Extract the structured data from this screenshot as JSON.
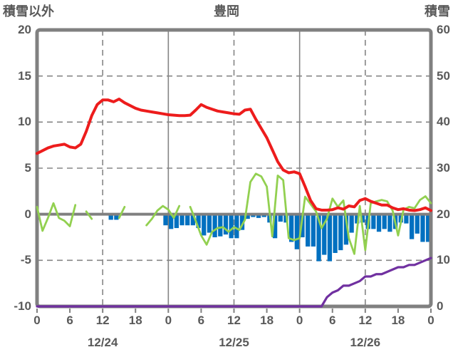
{
  "header": {
    "left_axis_title": "積雪以外",
    "chart_title": "豊岡",
    "right_axis_title": "積雪"
  },
  "colors": {
    "axis_gray": "#808080",
    "grid_gray": "#858585",
    "text_gray": "#595959",
    "temperature_red": "#ed1c1c",
    "green_series": "#92d050",
    "precip_blue": "#0070c0",
    "snow_purple": "#7030a0",
    "background": "#ffffff"
  },
  "chart_data": {
    "type": "line+bar combo",
    "title": "豊岡",
    "x_unit": "hour",
    "x_range": [
      0,
      72
    ],
    "grid": {
      "horizontal_dashed_left_values": [
        15,
        10,
        5,
        -5
      ],
      "zero_line_left_value": 0,
      "vertical_dashed_hours": [
        12,
        36,
        60
      ],
      "vertical_solid_hours": [
        24,
        48
      ],
      "bottom_tick_step_hours": 6
    },
    "left_axis": {
      "title": "積雪以外",
      "range": [
        -10,
        20
      ],
      "tick_labels": [
        "20",
        "15",
        "10",
        "5",
        "0",
        "-5",
        "-10"
      ],
      "tick_values": [
        20,
        15,
        10,
        5,
        0,
        -5,
        -10
      ]
    },
    "right_axis": {
      "title": "積雪",
      "range": [
        0,
        60
      ],
      "tick_labels": [
        "60",
        "50",
        "40",
        "30",
        "20",
        "10",
        "0"
      ],
      "tick_values": [
        60,
        50,
        40,
        30,
        20,
        10,
        0
      ]
    },
    "x_axis": {
      "hour_tick_hours": [
        0,
        6,
        12,
        18,
        24,
        30,
        36,
        42,
        48,
        54,
        60,
        66,
        72
      ],
      "hour_tick_labels": [
        "0",
        "6",
        "12",
        "18",
        "0",
        "6",
        "12",
        "18",
        "0",
        "6",
        "12",
        "18",
        "0"
      ],
      "date_labels": [
        "12/24",
        "12/25",
        "12/26"
      ],
      "date_anchor_hours": [
        12,
        36,
        60
      ]
    },
    "series": [
      {
        "name": "temperature-red-line",
        "type": "line",
        "axis": "left",
        "color": "#ed1c1c",
        "width": 4,
        "values": [
          6.6,
          6.9,
          7.2,
          7.4,
          7.5,
          7.6,
          7.3,
          7.2,
          7.6,
          9.0,
          10.7,
          11.9,
          12.4,
          12.4,
          12.2,
          12.5,
          12.1,
          11.8,
          11.5,
          11.3,
          11.2,
          11.1,
          11.0,
          10.9,
          10.8,
          10.75,
          10.7,
          10.7,
          10.75,
          11.3,
          11.9,
          11.6,
          11.4,
          11.2,
          11.1,
          11.0,
          10.9,
          10.85,
          11.3,
          11.4,
          10.3,
          9.3,
          8.3,
          7.0,
          5.7,
          4.8,
          4.5,
          4.6,
          4.4,
          3.0,
          1.5,
          0.6,
          0.45,
          0.45,
          0.5,
          0.7,
          0.55,
          0.9,
          0.8,
          1.5,
          1.7,
          1.4,
          1.2,
          1.0,
          1.0,
          0.7,
          0.5,
          0.6,
          0.45,
          0.4,
          0.5,
          0.7,
          0.4
        ]
      },
      {
        "name": "green-line",
        "type": "line",
        "axis": "left",
        "color": "#92d050",
        "width": 2.8,
        "values": [
          0.8,
          -1.8,
          -0.4,
          1.2,
          -0.4,
          -0.7,
          -1.3,
          1.0,
          null,
          0.3,
          -0.5,
          null,
          null,
          null,
          null,
          -0.4,
          0.8,
          null,
          null,
          null,
          -1.2,
          -0.5,
          0.4,
          0.9,
          0.5,
          -0.4,
          0.9,
          null,
          0.8,
          -0.7,
          -2.3,
          -3.3,
          -1.9,
          -1.5,
          -1.4,
          -1.9,
          -1.4,
          -1.7,
          -0.6,
          3.5,
          4.4,
          4.1,
          3.0,
          -2.4,
          4.2,
          3.7,
          -2.6,
          -2.8,
          -2.6,
          1.9,
          1.1,
          0.3,
          -1.5,
          -0.5,
          1.7,
          0.8,
          1.5,
          -2.6,
          -4.3,
          0.9,
          -3.9,
          1.2,
          1.4,
          1.55,
          1.4,
          0.4,
          -2.3,
          0.5,
          0.8,
          0.65,
          1.55,
          1.95,
          1.2
        ]
      },
      {
        "name": "precipitation-blue-bars",
        "type": "bar",
        "axis": "left",
        "color": "#0070c0",
        "values": [
          0,
          0,
          0,
          0,
          0,
          0,
          0,
          0,
          0,
          0,
          0,
          0,
          0,
          -0.6,
          -0.6,
          0,
          0,
          0,
          0,
          0,
          0,
          0,
          0,
          -1.2,
          -1.6,
          -1.5,
          -1.2,
          -1.2,
          -1.2,
          -1.5,
          -2.3,
          -2.0,
          -2.5,
          -2.4,
          -2.2,
          -2.6,
          -2.6,
          -1.7,
          -0.5,
          -0.3,
          -0.4,
          -0.3,
          -0.9,
          -2.6,
          -0.8,
          -0.9,
          -3.0,
          -3.8,
          -2.5,
          -3.5,
          -3.5,
          -5.1,
          -4.4,
          -5.1,
          -4.2,
          -3.9,
          -3.3,
          -2.0,
          -1.0,
          -0.9,
          -1.6,
          -1.6,
          -1.9,
          -1.6,
          -1.9,
          -1.6,
          -0.9,
          -1.0,
          -2.7,
          -2.1,
          -3.0,
          -3.0
        ]
      },
      {
        "name": "snow-depth-purple-line",
        "type": "line",
        "axis": "right",
        "color": "#7030a0",
        "width": 3.2,
        "values": [
          0,
          0,
          0,
          0,
          0,
          0,
          0,
          0,
          0,
          0,
          0,
          0,
          0,
          0,
          0,
          0,
          0,
          0,
          0,
          0,
          0,
          0,
          0,
          0,
          0,
          0,
          0,
          0,
          0,
          0,
          0,
          0,
          0,
          0,
          0,
          0,
          0,
          0,
          0,
          0,
          0,
          0,
          0,
          0,
          0,
          0,
          0,
          0,
          0,
          0,
          0,
          0,
          0,
          2,
          3,
          3.5,
          4.5,
          4.5,
          5,
          5.5,
          6.5,
          6.5,
          7,
          7,
          7.5,
          8,
          8.5,
          8.5,
          9,
          9,
          9.5,
          10,
          10.5
        ]
      }
    ]
  }
}
